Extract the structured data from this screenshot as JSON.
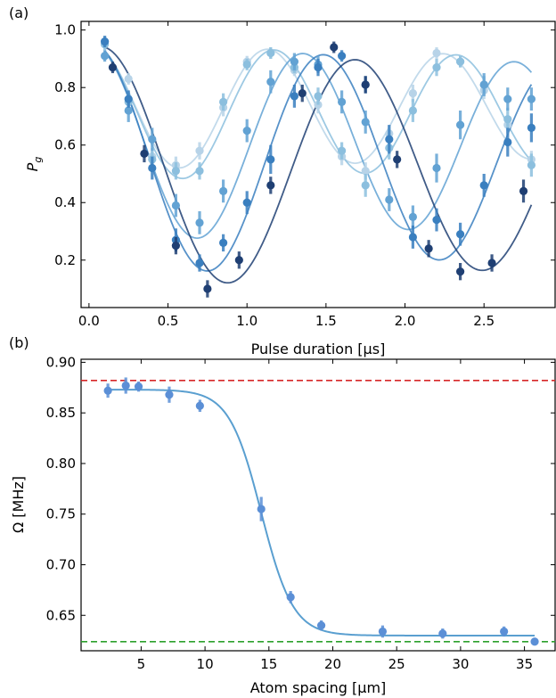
{
  "chart_data": [
    {
      "type": "scatter",
      "panel_label": "(a)",
      "xlabel": "Pulse duration [μs]",
      "ylabel": "P_g",
      "ylabel_main": "P",
      "ylabel_sub": "g",
      "xlim": [
        -0.05,
        2.95
      ],
      "ylim": [
        0.035,
        1.03
      ],
      "xticks": [
        0.0,
        0.5,
        1.0,
        1.5,
        2.0,
        2.5
      ],
      "xtick_labels": [
        "0.0",
        "0.5",
        "1.0",
        "1.5",
        "2.0",
        "2.5"
      ],
      "yticks": [
        0.2,
        0.4,
        0.6,
        0.8,
        1.0
      ],
      "ytick_labels": [
        "0.2",
        "0.4",
        "0.6",
        "0.8",
        "1.0"
      ],
      "grid": false,
      "series": [
        {
          "color": "#b7d3e8",
          "x": [
            0.1,
            0.25,
            0.4,
            0.55,
            0.7,
            0.85,
            1.0,
            1.15,
            1.3,
            1.45,
            1.6,
            1.75,
            1.9,
            2.05,
            2.2,
            2.35,
            2.5,
            2.65,
            2.8
          ],
          "y": [
            0.96,
            0.83,
            0.56,
            0.53,
            0.58,
            0.73,
            0.89,
            0.92,
            0.86,
            0.74,
            0.56,
            0.51,
            0.64,
            0.78,
            0.92,
            0.89,
            0.79,
            0.67,
            0.55
          ],
          "err": [
            0.02,
            0.02,
            0.03,
            0.03,
            0.03,
            0.03,
            0.02,
            0.02,
            0.02,
            0.03,
            0.03,
            0.03,
            0.03,
            0.03,
            0.02,
            0.02,
            0.03,
            0.03,
            0.03
          ],
          "fit": {
            "A": 0.219,
            "B": 0.731,
            "omega": 5.65,
            "phi": -0.105,
            "tau": 14
          }
        },
        {
          "color": "#8cbfde",
          "x": [
            0.1,
            0.25,
            0.4,
            0.55,
            0.7,
            0.85,
            1.0,
            1.15,
            1.3,
            1.45,
            1.6,
            1.75,
            1.9,
            2.05,
            2.2,
            2.35,
            2.5,
            2.65,
            2.8
          ],
          "y": [
            0.95,
            0.75,
            0.55,
            0.51,
            0.51,
            0.75,
            0.88,
            0.92,
            0.87,
            0.77,
            0.58,
            0.46,
            0.59,
            0.72,
            0.87,
            0.89,
            0.81,
            0.69,
            0.53
          ],
          "err": [
            0.02,
            0.03,
            0.03,
            0.03,
            0.03,
            0.03,
            0.02,
            0.02,
            0.02,
            0.03,
            0.03,
            0.04,
            0.04,
            0.04,
            0.03,
            0.02,
            0.03,
            0.04,
            0.04
          ],
          "fit": {
            "A": 0.238,
            "B": 0.712,
            "omega": 5.45,
            "phi": -0.1,
            "tau": 14
          }
        },
        {
          "color": "#62a2d3",
          "x": [
            0.1,
            0.25,
            0.4,
            0.55,
            0.7,
            0.85,
            1.0,
            1.15,
            1.3,
            1.45,
            1.6,
            1.75,
            1.9,
            2.05,
            2.2,
            2.35,
            2.5,
            2.65,
            2.8
          ],
          "y": [
            0.91,
            0.72,
            0.62,
            0.39,
            0.33,
            0.44,
            0.65,
            0.82,
            0.89,
            0.88,
            0.75,
            0.68,
            0.41,
            0.35,
            0.52,
            0.67,
            0.81,
            0.76,
            0.76
          ],
          "err": [
            0.02,
            0.04,
            0.04,
            0.04,
            0.04,
            0.04,
            0.04,
            0.04,
            0.03,
            0.03,
            0.04,
            0.04,
            0.04,
            0.04,
            0.05,
            0.05,
            0.04,
            0.04,
            0.04
          ],
          "fit": {
            "A": 0.345,
            "B": 0.605,
            "omega": 4.7,
            "phi": -0.09,
            "tau": 14
          }
        },
        {
          "color": "#3a7fbf",
          "x": [
            0.1,
            0.25,
            0.4,
            0.55,
            0.7,
            0.85,
            1.0,
            1.15,
            1.3,
            1.45,
            1.6,
            1.75,
            1.9,
            2.05,
            2.2,
            2.35,
            2.5,
            2.65,
            2.8
          ],
          "y": [
            0.96,
            0.76,
            0.52,
            0.27,
            0.19,
            0.26,
            0.4,
            0.55,
            0.77,
            0.87,
            0.91,
            0.81,
            0.62,
            0.28,
            0.34,
            0.29,
            0.46,
            0.61,
            0.66
          ],
          "err": [
            0.02,
            0.03,
            0.04,
            0.04,
            0.03,
            0.03,
            0.04,
            0.05,
            0.04,
            0.03,
            0.02,
            0.03,
            0.05,
            0.04,
            0.04,
            0.04,
            0.04,
            0.05,
            0.05
          ],
          "fit": {
            "A": 0.407,
            "B": 0.548,
            "omega": 4.28,
            "phi": -0.08,
            "tau": 14
          }
        },
        {
          "color": "#1f3f73",
          "x": [
            0.15,
            0.35,
            0.55,
            0.75,
            0.95,
            1.15,
            1.35,
            1.55,
            1.75,
            1.95,
            2.15,
            2.35,
            2.55,
            2.75
          ],
          "y": [
            0.87,
            0.57,
            0.25,
            0.1,
            0.2,
            0.46,
            0.78,
            0.94,
            0.81,
            0.55,
            0.24,
            0.16,
            0.19,
            0.44
          ],
          "err": [
            0.02,
            0.03,
            0.03,
            0.03,
            0.03,
            0.03,
            0.03,
            0.02,
            0.03,
            0.03,
            0.03,
            0.03,
            0.03,
            0.04
          ],
          "fit": {
            "A": 0.425,
            "B": 0.52,
            "omega": 3.9,
            "phi": -0.3,
            "tau": 14
          }
        }
      ]
    },
    {
      "type": "scatter",
      "panel_label": "(b)",
      "xlabel": "Atom spacing [μm]",
      "ylabel": "Ω [MHz]",
      "xlim": [
        0.3,
        37.4
      ],
      "ylim": [
        0.615,
        0.903
      ],
      "xticks": [
        5,
        10,
        15,
        20,
        25,
        30,
        35
      ],
      "xtick_labels": [
        "5",
        "10",
        "15",
        "20",
        "25",
        "30",
        "35"
      ],
      "yticks": [
        0.65,
        0.7,
        0.75,
        0.8,
        0.85,
        0.9
      ],
      "ytick_labels": [
        "0.65",
        "0.70",
        "0.75",
        "0.80",
        "0.85",
        "0.90"
      ],
      "grid": false,
      "points": {
        "color": "#5b8fd6",
        "x": [
          2.4,
          3.8,
          4.8,
          7.2,
          9.6,
          14.4,
          16.7,
          19.1,
          23.9,
          28.6,
          33.4,
          35.8
        ],
        "y": [
          0.872,
          0.877,
          0.876,
          0.868,
          0.857,
          0.755,
          0.668,
          0.64,
          0.634,
          0.632,
          0.634,
          0.624
        ],
        "err": [
          0.007,
          0.008,
          0.005,
          0.008,
          0.006,
          0.012,
          0.006,
          0.005,
          0.006,
          0.005,
          0.005,
          0.003
        ]
      },
      "fit": {
        "color": "#5a9fd0",
        "x_min": 2.4,
        "x_max": 35.8,
        "low": 0.63,
        "high": 0.873,
        "x0": 14.4,
        "width": 1.25
      },
      "hlines": [
        {
          "y": 0.882,
          "color": "#d62728",
          "style": "dashed"
        },
        {
          "y": 0.624,
          "color": "#2ca02c",
          "style": "dashed"
        }
      ]
    }
  ]
}
